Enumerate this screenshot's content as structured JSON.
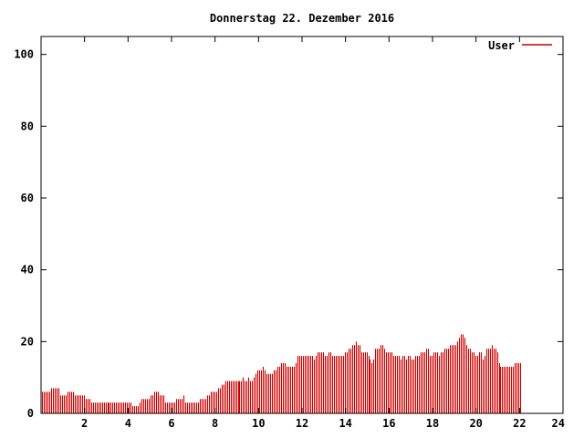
{
  "chart_data": {
    "type": "bar",
    "title": "Donnerstag 22. Dezember 2016",
    "xlabel": "",
    "ylabel": "",
    "xlim": [
      0,
      24
    ],
    "ylim": [
      0,
      105
    ],
    "x_ticks": [
      2,
      4,
      6,
      8,
      10,
      12,
      14,
      16,
      18,
      20,
      22,
      24
    ],
    "y_ticks": [
      0,
      20,
      40,
      60,
      80,
      100
    ],
    "grid": false,
    "legend_position": "top-right",
    "series": [
      {
        "name": "User",
        "color": "#cc0000",
        "sample_interval_hours": 0.0833,
        "values": [
          6,
          6,
          6,
          6,
          6,
          7,
          7,
          7,
          7,
          7,
          5,
          5,
          5,
          5,
          6,
          6,
          6,
          6,
          5,
          5,
          5,
          5,
          5,
          5,
          4,
          4,
          4,
          3,
          3,
          3,
          3,
          3,
          3,
          3,
          3,
          3,
          3,
          3,
          3,
          3,
          3,
          3,
          3,
          3,
          3,
          3,
          3,
          3,
          3,
          3,
          2,
          2,
          2,
          2,
          3,
          4,
          4,
          4,
          4,
          4,
          5,
          5,
          6,
          6,
          6,
          5,
          5,
          5,
          3,
          3,
          3,
          3,
          3,
          3,
          4,
          4,
          4,
          4,
          5,
          3,
          3,
          3,
          3,
          3,
          3,
          3,
          3,
          4,
          4,
          4,
          4,
          5,
          5,
          6,
          6,
          6,
          6,
          7,
          7,
          8,
          8,
          9,
          9,
          9,
          9,
          9,
          9,
          9,
          9,
          9,
          9,
          10,
          9,
          9,
          10,
          9,
          9,
          10,
          11,
          12,
          12,
          12,
          13,
          12,
          11,
          11,
          11,
          11,
          12,
          12,
          13,
          13,
          14,
          14,
          14,
          13,
          13,
          13,
          13,
          13,
          14,
          16,
          16,
          16,
          16,
          16,
          16,
          16,
          16,
          16,
          15,
          16,
          17,
          17,
          17,
          17,
          16,
          16,
          17,
          17,
          16,
          16,
          16,
          16,
          16,
          16,
          16,
          17,
          17,
          18,
          18,
          19,
          19,
          20,
          19,
          19,
          17,
          17,
          17,
          17,
          16,
          15,
          14,
          15,
          18,
          18,
          18,
          19,
          19,
          18,
          17,
          17,
          17,
          17,
          16,
          16,
          16,
          16,
          15,
          16,
          16,
          15,
          16,
          16,
          15,
          15,
          16,
          16,
          16,
          17,
          17,
          17,
          18,
          18,
          16,
          16,
          17,
          17,
          17,
          16,
          17,
          17,
          18,
          18,
          18,
          19,
          19,
          19,
          19,
          20,
          21,
          22,
          22,
          21,
          19,
          18,
          18,
          17,
          17,
          16,
          16,
          17,
          17,
          15,
          16,
          18,
          18,
          18,
          19,
          18,
          18,
          17,
          14,
          13,
          13,
          13,
          13,
          13,
          13,
          13,
          13,
          14,
          14,
          14,
          14
        ]
      }
    ]
  }
}
